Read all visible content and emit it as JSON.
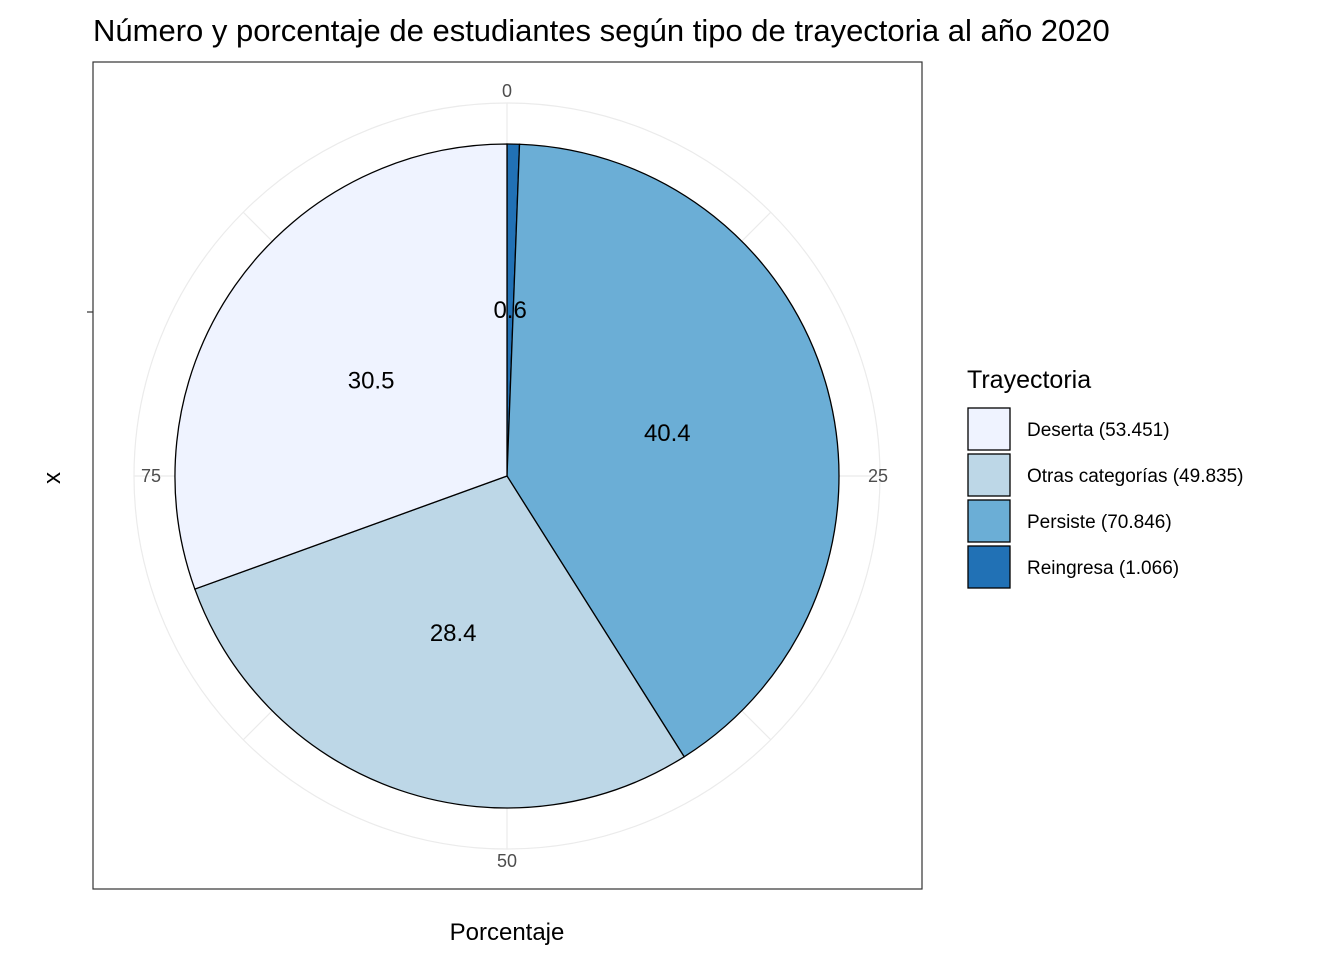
{
  "chart_data": {
    "type": "pie",
    "title": "Número y porcentaje de estudiantes según tipo de trayectoria al año 2020",
    "xlabel": "Porcentaje",
    "ylabel": "x",
    "angular_ticks": [
      "0",
      "25",
      "50",
      "75"
    ],
    "legend": {
      "title": "Trayectoria",
      "position": "right"
    },
    "slices": [
      {
        "category": "Reingresa",
        "legend_label": "Reingresa (1.066)",
        "value": 0.6,
        "label": "0.6",
        "color": "#2171B5"
      },
      {
        "category": "Persiste",
        "legend_label": "Persiste (70.846)",
        "value": 40.4,
        "label": "40.4",
        "color": "#6BAED6"
      },
      {
        "category": "Otras categorías",
        "legend_label": "Otras categorías (49.835)",
        "value": 28.4,
        "label": "28.4",
        "color": "#BDD7E7"
      },
      {
        "category": "Deserta",
        "legend_label": "Deserta (53.451)",
        "value": 30.5,
        "label": "30.5",
        "color": "#EFF3FF"
      }
    ],
    "legend_order": [
      "Deserta",
      "Otras categorías",
      "Persiste",
      "Reingresa"
    ],
    "grid": true
  }
}
